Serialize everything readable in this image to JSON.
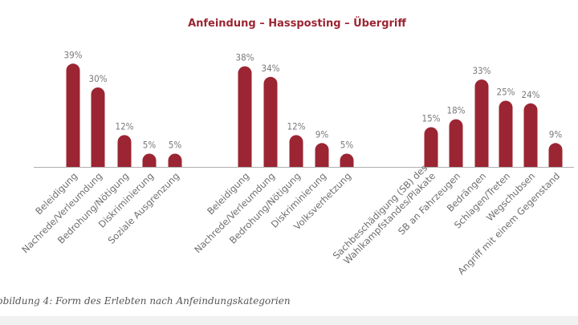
{
  "colors": {
    "bar": "#9b2532",
    "title": "#9b2532",
    "axis": "#b0b0b0"
  },
  "caption": "bbildung 4: Form des Erlebten nach Anfeindungskategorien",
  "chart_data": {
    "type": "bar",
    "title": "Anfeindung – Hassposting – Übergriff",
    "groups": [
      {
        "categories": [
          "Beleidigung",
          "Nachrede/Verleumdung",
          "Bedrohung/Nötigung",
          "Diskriminierung",
          "Soziale Ausgrenzung"
        ],
        "values": [
          39,
          30,
          12,
          5,
          5
        ],
        "value_labels": [
          "39%",
          "30%",
          "12%",
          "5%",
          "5%"
        ]
      },
      {
        "categories": [
          "Beleidigung",
          "Nachrede/Verleumdung",
          "Bedrohung/Nötigung",
          "Diskriminierung",
          "Volksverhetzung"
        ],
        "values": [
          38,
          34,
          12,
          9,
          5
        ],
        "value_labels": [
          "38%",
          "34%",
          "12%",
          "9%",
          "5%"
        ]
      },
      {
        "categories": [
          [
            "Sachbeschädigung (SB) des",
            "Wahlkampfstandes/Plakate"
          ],
          [
            "SB an Fahrzeugen"
          ],
          [
            "Bedrängen"
          ],
          [
            "Schlagen/Treten"
          ],
          [
            "Wegschubsen"
          ],
          [
            "Angriff mit einem Gegenstand"
          ]
        ],
        "values": [
          15,
          18,
          33,
          25,
          24,
          9
        ],
        "value_labels": [
          "15%",
          "18%",
          "33%",
          "25%",
          "24%",
          "9%"
        ]
      }
    ],
    "ylim": [
      0,
      42
    ],
    "grid": false
  }
}
